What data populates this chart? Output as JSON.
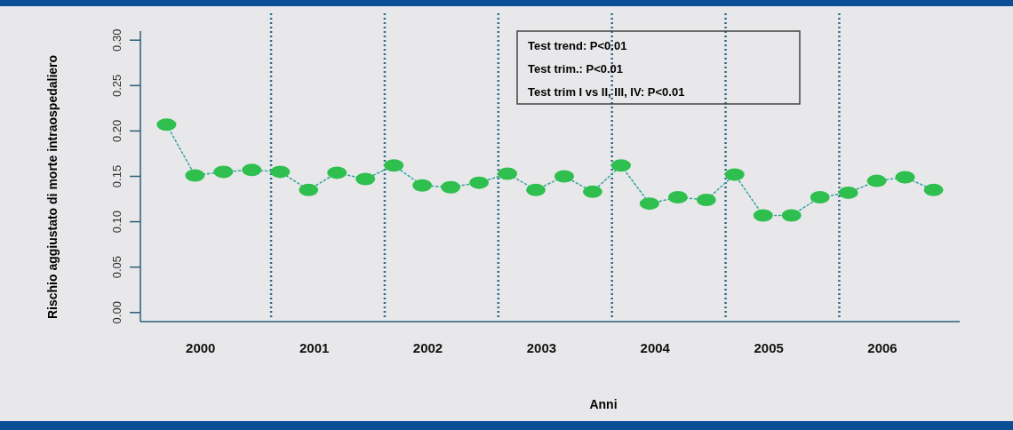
{
  "chart_data": {
    "type": "line",
    "xlabel": "Anni",
    "ylabel": "Rischio aggiustato di morte intraospedaliero",
    "x": [
      2000,
      2000.25,
      2000.5,
      2000.75,
      2001,
      2001.25,
      2001.5,
      2001.75,
      2002,
      2002.25,
      2002.5,
      2002.75,
      2003,
      2003.25,
      2003.5,
      2003.75,
      2004,
      2004.25,
      2004.5,
      2004.75,
      2005,
      2005.25,
      2005.5,
      2005.75,
      2006,
      2006.25,
      2006.5,
      2006.75
    ],
    "series": [
      {
        "color": "#2fbf4f",
        "values": [
          0.207,
          0.151,
          0.155,
          0.157,
          0.155,
          0.135,
          0.154,
          0.147,
          0.162,
          0.14,
          0.138,
          0.143,
          0.153,
          0.135,
          0.15,
          0.133,
          0.162,
          0.12,
          0.127,
          0.124,
          0.152,
          0.107,
          0.107,
          0.127,
          0.132,
          0.145,
          0.149,
          0.135
        ]
      }
    ],
    "xlim": [
      1999.77,
      2006.98
    ],
    "xticks": [
      {
        "value": 2000.3,
        "label": "2000"
      },
      {
        "value": 2001.3,
        "label": "2001"
      },
      {
        "value": 2002.3,
        "label": "2002"
      },
      {
        "value": 2003.3,
        "label": "2003"
      },
      {
        "value": 2004.3,
        "label": "2004"
      },
      {
        "value": 2005.3,
        "label": "2005"
      },
      {
        "value": 2006.3,
        "label": "2006"
      }
    ],
    "ylim": [
      -0.01,
      0.31
    ],
    "yticks": [
      {
        "value": 0,
        "label": "0.00"
      },
      {
        "value": 0.05,
        "label": "0.05"
      },
      {
        "value": 0.1,
        "label": "0.10"
      },
      {
        "value": 0.15,
        "label": "0.15"
      },
      {
        "value": 0.2,
        "label": "0.20"
      },
      {
        "value": 0.25,
        "label": "0.25"
      },
      {
        "value": 0.3,
        "label": "0.30"
      }
    ],
    "ref_lines": [
      {
        "axis": "x",
        "value": 2000.92,
        "color": "#2a6a8a",
        "line_style": "dotted"
      },
      {
        "axis": "x",
        "value": 2001.92,
        "color": "#2a6a8a",
        "line_style": "dotted"
      },
      {
        "axis": "x",
        "value": 2002.92,
        "color": "#2a6a8a",
        "line_style": "dotted"
      },
      {
        "axis": "x",
        "value": 2003.92,
        "color": "#2a6a8a",
        "line_style": "dotted"
      },
      {
        "axis": "x",
        "value": 2004.92,
        "color": "#2a6a8a",
        "line_style": "dotted"
      },
      {
        "axis": "x",
        "value": 2005.92,
        "color": "#2a6a8a",
        "line_style": "dotted"
      }
    ],
    "annotations": [
      "Test trend: P<0.01",
      "Test trim.: P<0.01",
      "Test trim I vs II, III, IV: P<0.01"
    ],
    "marker": "circle",
    "line_style": "dotted",
    "grid": false
  }
}
